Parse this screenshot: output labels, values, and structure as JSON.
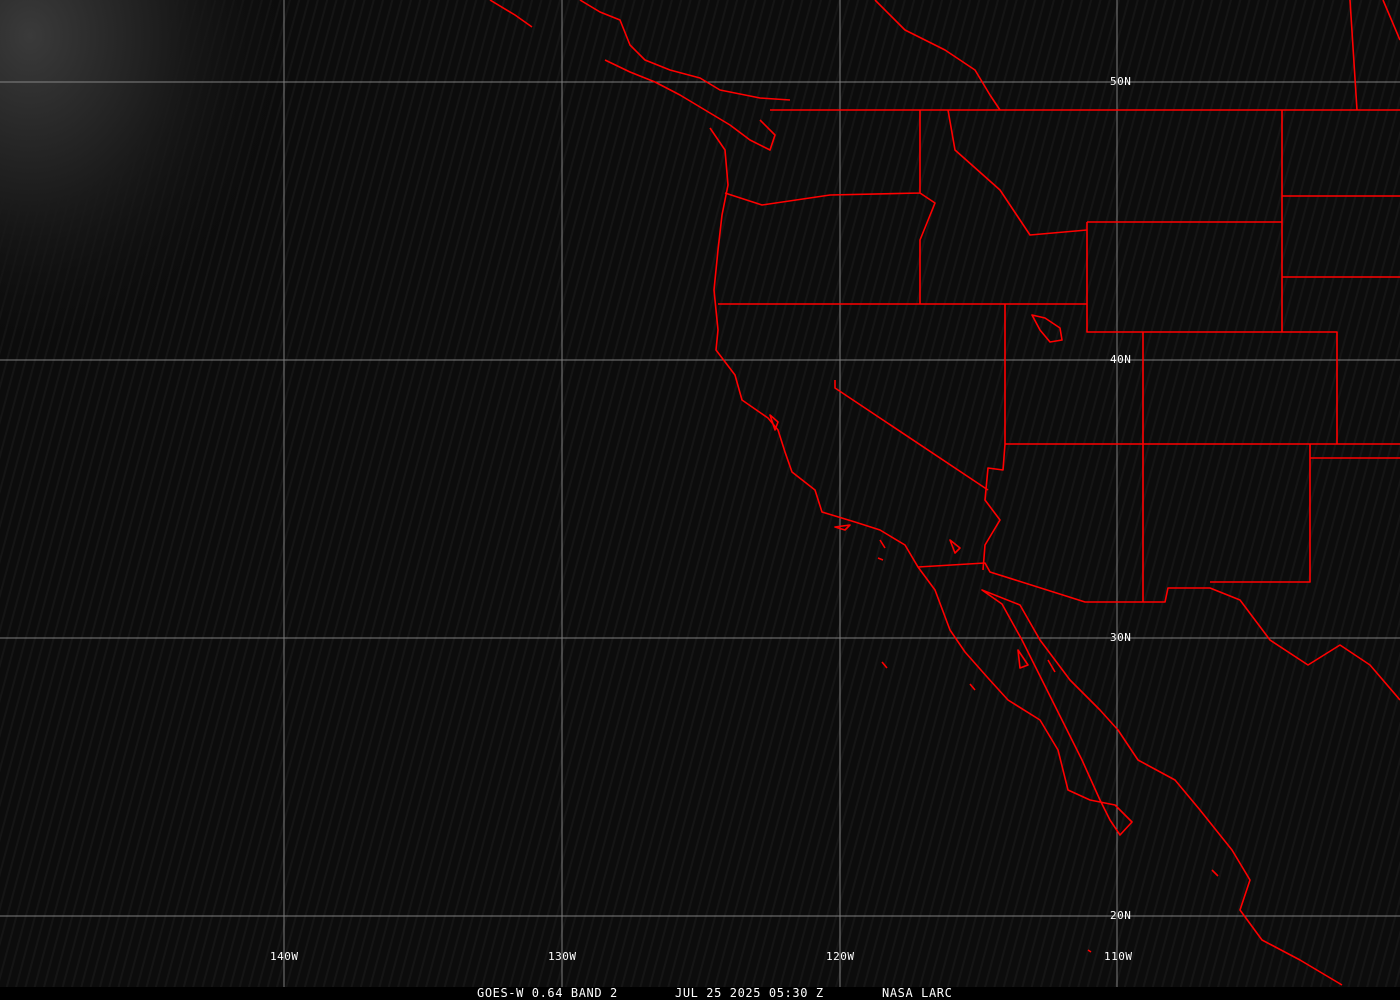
{
  "caption": {
    "satellite": "GOES-W 0.64 BAND 2",
    "datetime": "JUL 25 2025 05:30 Z",
    "source": "NASA LARC"
  },
  "grid": {
    "latitudes": [
      "50N",
      "40N",
      "30N",
      "20N"
    ],
    "longitudes": [
      "140W",
      "130W",
      "120W",
      "110W"
    ]
  },
  "colors": {
    "boundaries": "#ff0000",
    "grid": "#9a9a9a",
    "background": "#0c0c0c"
  }
}
